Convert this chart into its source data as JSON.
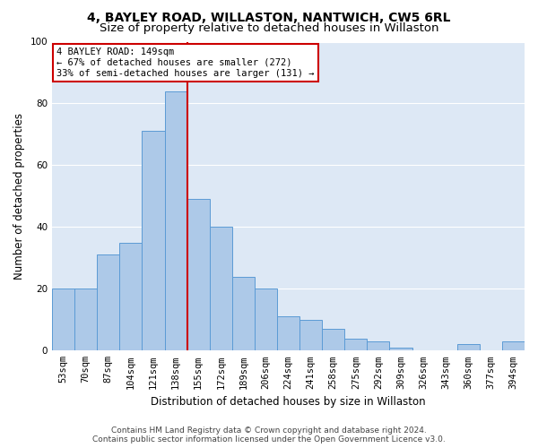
{
  "title": "4, BAYLEY ROAD, WILLASTON, NANTWICH, CW5 6RL",
  "subtitle": "Size of property relative to detached houses in Willaston",
  "xlabel": "Distribution of detached houses by size in Willaston",
  "ylabel": "Number of detached properties",
  "bar_labels": [
    "53sqm",
    "70sqm",
    "87sqm",
    "104sqm",
    "121sqm",
    "138sqm",
    "155sqm",
    "172sqm",
    "189sqm",
    "206sqm",
    "224sqm",
    "241sqm",
    "258sqm",
    "275sqm",
    "292sqm",
    "309sqm",
    "326sqm",
    "343sqm",
    "360sqm",
    "377sqm",
    "394sqm"
  ],
  "bar_values": [
    20,
    20,
    31,
    35,
    71,
    84,
    49,
    40,
    24,
    20,
    11,
    10,
    7,
    4,
    3,
    1,
    0,
    0,
    2,
    0,
    3
  ],
  "bar_color": "#adc9e8",
  "bar_edgecolor": "#5b9bd5",
  "vline_x": 5.5,
  "vline_color": "#cc0000",
  "annotation_line1": "4 BAYLEY ROAD: 149sqm",
  "annotation_line2": "← 67% of detached houses are smaller (272)",
  "annotation_line3": "33% of semi-detached houses are larger (131) →",
  "annotation_box_color": "#ffffff",
  "annotation_box_edgecolor": "#cc0000",
  "ylim": [
    0,
    100
  ],
  "yticks": [
    0,
    20,
    40,
    60,
    80,
    100
  ],
  "bg_color": "#dde8f5",
  "footer_line1": "Contains HM Land Registry data © Crown copyright and database right 2024.",
  "footer_line2": "Contains public sector information licensed under the Open Government Licence v3.0.",
  "title_fontsize": 10,
  "subtitle_fontsize": 9.5,
  "axis_label_fontsize": 8.5,
  "tick_fontsize": 7.5,
  "annotation_fontsize": 7.5,
  "footer_fontsize": 6.5
}
